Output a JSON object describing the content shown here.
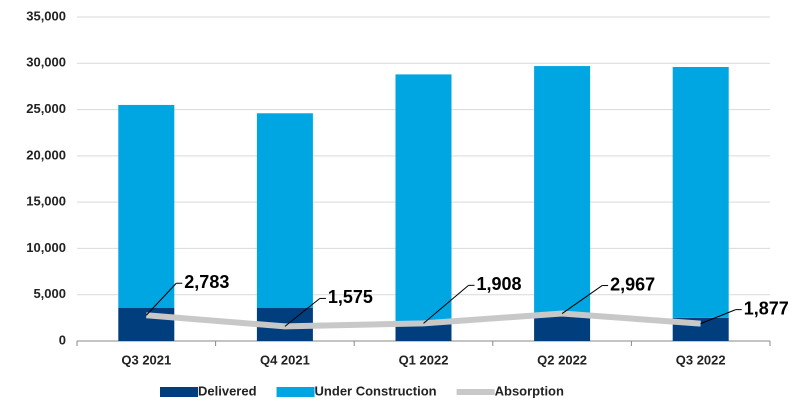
{
  "chart_data": {
    "type": "bar",
    "categories": [
      "Q3 2021",
      "Q4 2021",
      "Q1 2022",
      "Q2 2022",
      "Q3 2022"
    ],
    "stacked": true,
    "series": [
      {
        "name": "Delivered",
        "color": "#003e7e",
        "values": [
          3600,
          3600,
          2000,
          2700,
          2500
        ]
      },
      {
        "name": "Under Construction",
        "color": "#00a6e2",
        "values": [
          21900,
          21000,
          26800,
          27000,
          27100
        ]
      },
      {
        "name": "Absorption",
        "type": "line",
        "color": "#c8c8c8",
        "values": [
          2783,
          1575,
          1908,
          2967,
          1877
        ],
        "value_labels": [
          "2,783",
          "1,575",
          "1,908",
          "2,967",
          "1,877"
        ]
      }
    ],
    "ylim": [
      0,
      35000
    ],
    "yticks": [
      0,
      {
        "value": 5000,
        "label": "5,000"
      },
      {
        "value": 10000,
        "label": "10,000"
      },
      {
        "value": 15000,
        "label": "15,000"
      },
      {
        "value": 20000,
        "label": "20,000"
      },
      {
        "value": 25000,
        "label": "25,000"
      },
      {
        "value": 30000,
        "label": "30,000"
      },
      {
        "value": 35000,
        "label": "35,000"
      }
    ],
    "grid": true,
    "legend": "bottom"
  }
}
